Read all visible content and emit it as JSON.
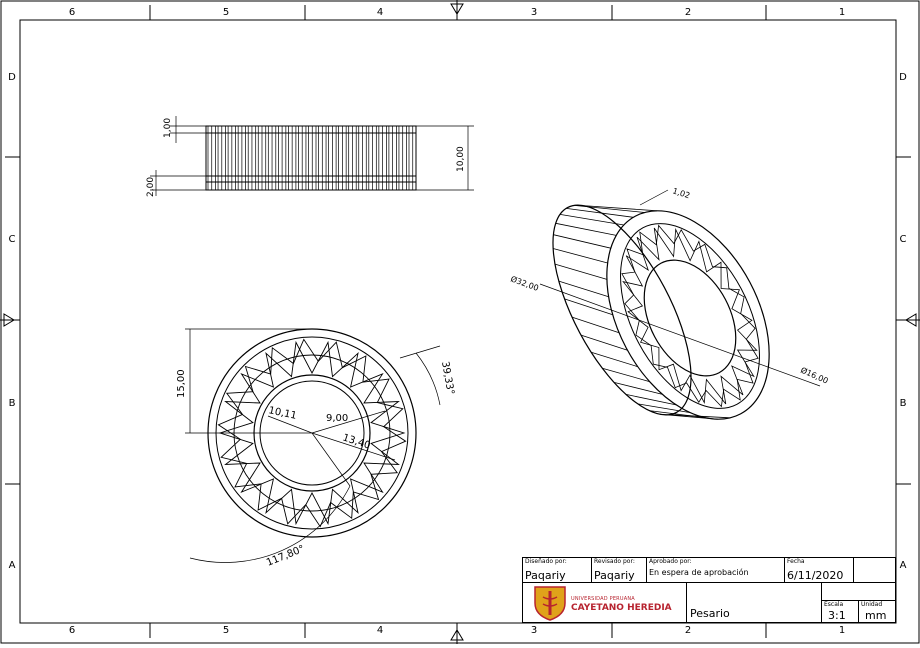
{
  "frame": {
    "top_zones": [
      "6",
      "5",
      "4",
      "3",
      "2",
      "1"
    ],
    "bottom_zones": [
      "6",
      "5",
      "4",
      "3",
      "2",
      "1"
    ],
    "left_zones": [
      "D",
      "C",
      "B",
      "A"
    ],
    "right_zones": [
      "D",
      "C",
      "B",
      "A"
    ]
  },
  "views": {
    "side_view": {
      "dims": {
        "rim_top": "1,00",
        "rim_bottom": "2,00",
        "height": "10,00"
      }
    },
    "top_view": {
      "dims": {
        "outer_radius": "15,00",
        "angle_small": "39,33°",
        "r1": "10,11",
        "r2": "9,00",
        "r3": "13,40",
        "angle_large": "117,80°"
      }
    },
    "iso_view": {
      "dims": {
        "wall": "1,02",
        "outer_dia": "Ø32,00",
        "inner_dia": "Ø16,00"
      }
    }
  },
  "title_block": {
    "designed_by_label": "Diseñado por:",
    "designed_by": "Paqariy",
    "reviewed_by_label": "Revisado por:",
    "reviewed_by": "Paqariy",
    "approved_by_label": "Aprobado por:",
    "approved_by": "En espera de aprobación",
    "date_label": "Fecha",
    "date": "6/11/2020",
    "logo_line1": "UNIVERSIDAD PERUANA",
    "logo_line2": "CAYETANO HEREDIA",
    "part_name": "Pesario",
    "scale_label": "Escala",
    "scale": "3:1",
    "unit_label": "Unidad",
    "unit": "mm",
    "colors": {
      "brand": "#b7232f",
      "shield_gold": "#e0a21a"
    }
  }
}
